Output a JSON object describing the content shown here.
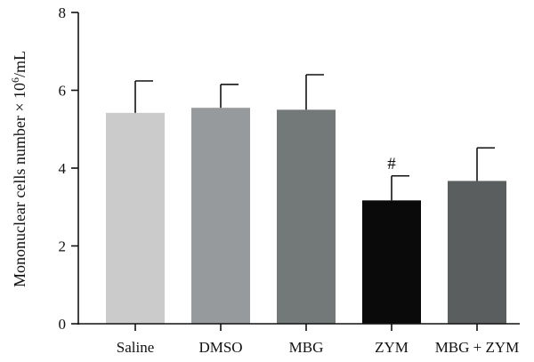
{
  "chart_data": {
    "type": "bar",
    "title": "",
    "xlabel": "",
    "ylabel": {
      "prefix": "Mononuclear cells number × 10",
      "exponent": "6",
      "suffix": "/mL"
    },
    "ylim": [
      0,
      8
    ],
    "yticks": [
      "0",
      "2",
      "4",
      "6",
      "8"
    ],
    "categories": [
      "Saline",
      "DMSO",
      "MBG",
      "ZYM",
      "MBG + ZYM"
    ],
    "values": [
      5.42,
      5.55,
      5.5,
      3.17,
      3.67
    ],
    "error_upper": [
      0.82,
      0.6,
      0.9,
      0.63,
      0.85
    ],
    "colors": [
      "#cbcbcb",
      "#979a9c",
      "#737979",
      "#0a0a0a",
      "#5a5e5e"
    ],
    "annotations": [
      {
        "category": "ZYM",
        "text": "#"
      }
    ],
    "grid": false,
    "legend": "none"
  }
}
